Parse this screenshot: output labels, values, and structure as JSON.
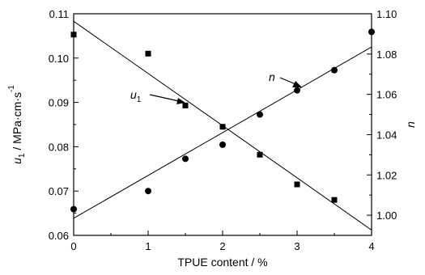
{
  "chart_data": {
    "type": "scatter",
    "xlabel": "TPUE content / %",
    "ylabel_left": "u1 / MPa·cm·s-1",
    "ylabel_right": "n",
    "xlim": [
      0,
      4
    ],
    "ylim_left": [
      0.06,
      0.11
    ],
    "ylim_right": [
      0.99,
      1.1
    ],
    "x_ticks": [
      "0",
      "1",
      "2",
      "3",
      "4"
    ],
    "y_left_ticks": [
      "0.06",
      "0.07",
      "0.08",
      "0.09",
      "0.10",
      "0.11"
    ],
    "y_right_ticks": [
      "1.00",
      "1.02",
      "1.04",
      "1.06",
      "1.08",
      "1.10"
    ],
    "grid": false,
    "series": [
      {
        "name": "u1",
        "axis": "left",
        "marker": "square",
        "x": [
          0,
          1,
          1.5,
          2,
          2.5,
          3,
          3.5
        ],
        "y": [
          0.1053,
          0.101,
          0.0893,
          0.0845,
          0.0782,
          0.0715,
          0.068
        ],
        "fit": {
          "x": [
            0,
            4
          ],
          "y": [
            0.1083,
            0.0612
          ]
        }
      },
      {
        "name": "n",
        "axis": "right",
        "marker": "circle",
        "x": [
          0,
          1,
          1.5,
          2,
          2.5,
          3,
          3.5,
          4
        ],
        "y": [
          1.003,
          1.012,
          1.028,
          1.035,
          1.05,
          1.062,
          1.072,
          1.091
        ],
        "fit": {
          "x": [
            0,
            4
          ],
          "y": [
            0.9985,
            1.0835
          ]
        }
      }
    ],
    "annotations": [
      {
        "text": "u1",
        "points_to_series": "u1"
      },
      {
        "text": "n",
        "points_to_series": "n"
      }
    ]
  }
}
